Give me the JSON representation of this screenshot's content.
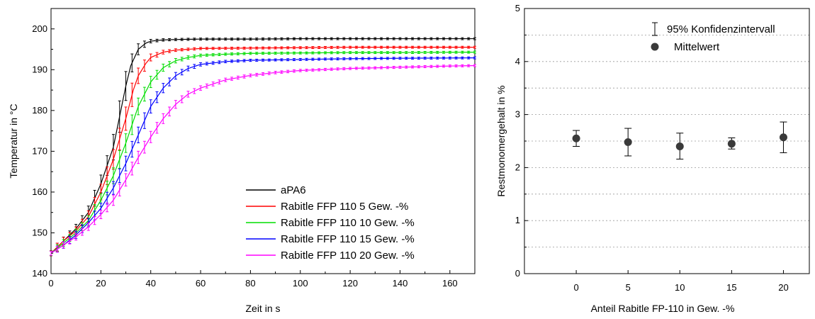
{
  "chart_data": [
    {
      "type": "line",
      "xlabel": "Zeit in s",
      "ylabel": "Temperatur in °C",
      "xlim": [
        0,
        170
      ],
      "ylim": [
        140,
        205
      ],
      "xticks": [
        0,
        20,
        40,
        60,
        80,
        100,
        120,
        140,
        160
      ],
      "yticks": [
        140,
        150,
        160,
        170,
        180,
        190,
        200
      ],
      "grid": false,
      "legend_position": "bottom-right",
      "series": [
        {
          "name": "aPA6",
          "color": "#000000",
          "x": [
            0,
            5,
            10,
            15,
            20,
            25,
            28,
            30,
            32,
            35,
            38,
            40,
            45,
            50,
            60,
            80,
            100,
            120,
            140,
            170
          ],
          "y": [
            145,
            148,
            151,
            155,
            162,
            171,
            180,
            186,
            191,
            195,
            196.5,
            197,
            197.3,
            197.4,
            197.5,
            197.5,
            197.6,
            197.6,
            197.6,
            197.6
          ]
        },
        {
          "name": "Rabitle FFP 110 5 Gew. -%",
          "color": "#ff0000",
          "x": [
            0,
            5,
            10,
            15,
            20,
            25,
            30,
            33,
            35,
            38,
            40,
            45,
            50,
            60,
            80,
            100,
            120,
            140,
            170
          ],
          "y": [
            145,
            148,
            150.5,
            154,
            160,
            168,
            178,
            185,
            188.5,
            191.5,
            193,
            194.3,
            194.8,
            195.2,
            195.3,
            195.4,
            195.5,
            195.5,
            195.5
          ]
        },
        {
          "name": "Rabitle FFP 110 10 Gew. -%",
          "color": "#00dd00",
          "x": [
            0,
            5,
            10,
            15,
            20,
            25,
            30,
            35,
            40,
            45,
            50,
            55,
            60,
            70,
            80,
            100,
            120,
            140,
            170
          ],
          "y": [
            145,
            147.5,
            150,
            153,
            158,
            164,
            172,
            181,
            187,
            190.5,
            192.2,
            193,
            193.5,
            193.8,
            194,
            194.1,
            194.2,
            194.2,
            194.3
          ]
        },
        {
          "name": "Rabitle FFP 110 15 Gew. -%",
          "color": "#0000ff",
          "x": [
            0,
            5,
            10,
            15,
            20,
            25,
            30,
            35,
            40,
            45,
            50,
            55,
            60,
            70,
            80,
            100,
            120,
            140,
            170
          ],
          "y": [
            145,
            147,
            149.5,
            152.5,
            156,
            161,
            167,
            174,
            181,
            185.5,
            188.5,
            190.3,
            191.3,
            192,
            192.3,
            192.5,
            192.7,
            192.8,
            192.9
          ]
        },
        {
          "name": "Rabitle FFP 110 20 Gew. -%",
          "color": "#ff00ff",
          "x": [
            0,
            5,
            10,
            15,
            20,
            25,
            30,
            35,
            40,
            45,
            50,
            55,
            60,
            70,
            80,
            90,
            100,
            120,
            140,
            160,
            170
          ],
          "y": [
            145,
            147,
            149,
            151.5,
            154.5,
            158,
            163,
            168.5,
            173.5,
            178,
            181.5,
            184,
            185.5,
            187.5,
            188.6,
            189.3,
            189.8,
            190.3,
            190.6,
            190.9,
            191
          ]
        }
      ]
    },
    {
      "type": "scatter",
      "xlabel": "Anteil Rabitle FP-110 in Gew. -%",
      "ylabel": "Restmonomergehalt in %",
      "xlim": [
        -5,
        22.5
      ],
      "ylim": [
        0,
        5
      ],
      "xticks": [
        0,
        5,
        10,
        15,
        20
      ],
      "yticks": [
        0,
        1,
        2,
        3,
        4,
        5
      ],
      "grid": true,
      "legend_position": "top-right",
      "series": [
        {
          "name": "Mittelwert",
          "color": "#3a3a3a",
          "x": [
            0,
            5,
            10,
            15,
            20
          ],
          "y": [
            2.55,
            2.48,
            2.4,
            2.45,
            2.57
          ],
          "error_low": [
            2.4,
            2.22,
            2.16,
            2.35,
            2.28
          ],
          "error_high": [
            2.7,
            2.74,
            2.65,
            2.56,
            2.86
          ]
        }
      ],
      "error_legend": "95% Konfidenzintervall"
    }
  ]
}
